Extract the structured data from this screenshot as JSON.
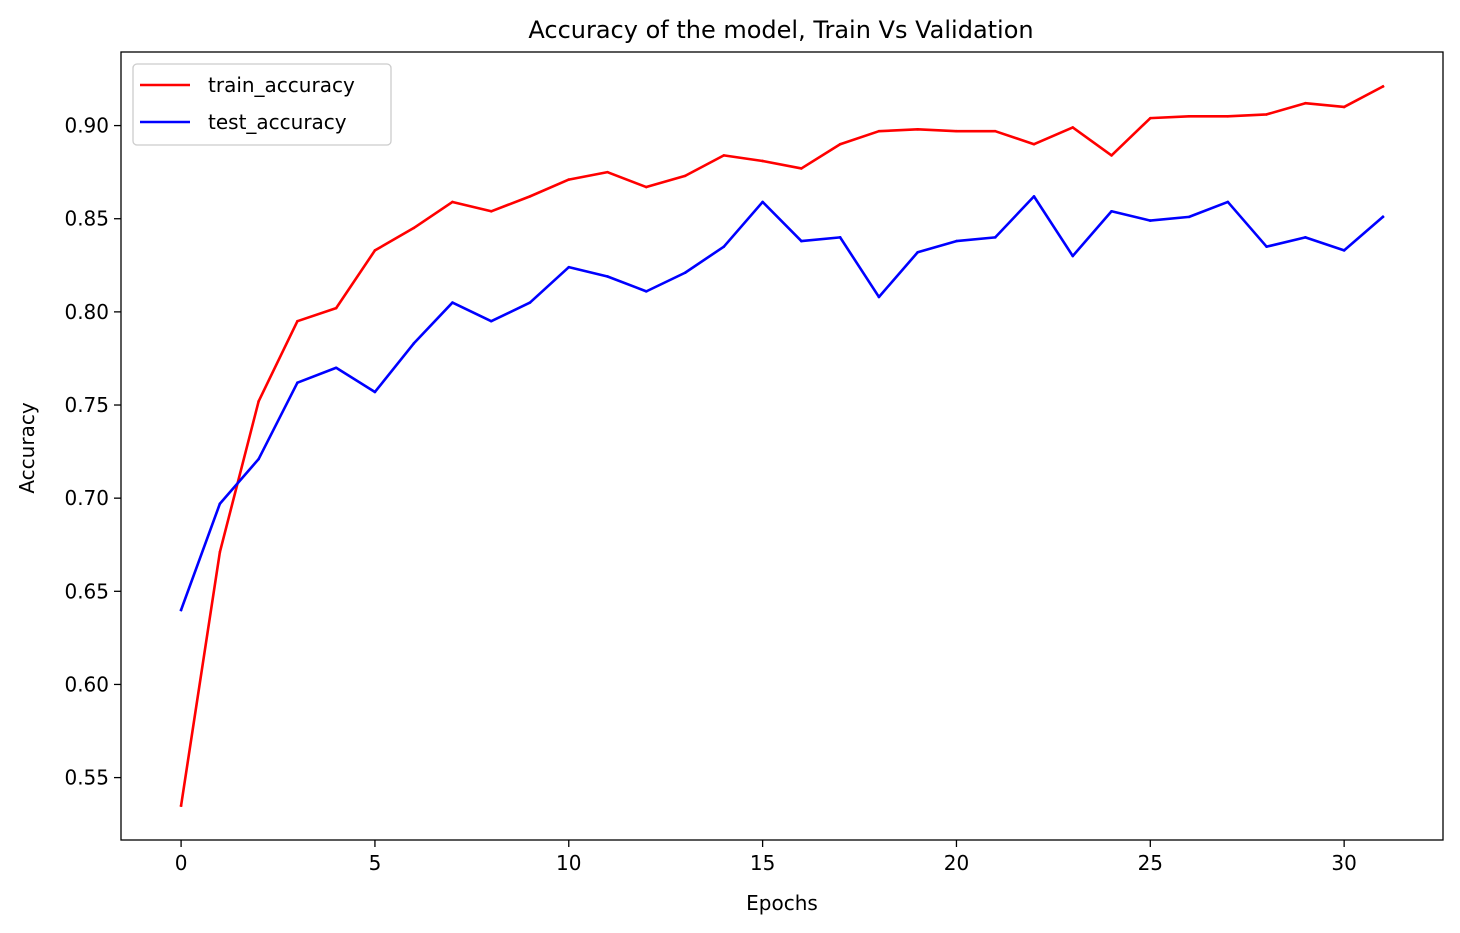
{
  "chart_data": {
    "type": "line",
    "title": "Accuracy of the model, Train Vs Validation",
    "xlabel": "Epochs",
    "ylabel": "Accuracy",
    "xlim": [
      -1.55,
      32.55
    ],
    "ylim": [
      0.5165,
      0.9395
    ],
    "xticks": [
      0,
      5,
      10,
      15,
      20,
      25,
      30
    ],
    "xtick_labels": [
      "0",
      "5",
      "10",
      "15",
      "20",
      "25",
      "30"
    ],
    "yticks": [
      0.55,
      0.6,
      0.65,
      0.7,
      0.75,
      0.8,
      0.85,
      0.9
    ],
    "ytick_labels": [
      "0.55",
      "0.60",
      "0.65",
      "0.70",
      "0.75",
      "0.80",
      "0.85",
      "0.90"
    ],
    "grid": false,
    "legend_position": "top-left",
    "x": [
      0,
      1,
      2,
      3,
      4,
      5,
      6,
      7,
      8,
      9,
      10,
      11,
      12,
      13,
      14,
      15,
      16,
      17,
      18,
      19,
      20,
      21,
      22,
      23,
      24,
      25,
      26,
      27,
      28,
      29,
      30,
      31
    ],
    "series": [
      {
        "name": "train_accuracy",
        "color": "#ff0000",
        "values": [
          0.535,
          0.671,
          0.752,
          0.795,
          0.802,
          0.833,
          0.845,
          0.859,
          0.854,
          0.862,
          0.871,
          0.875,
          0.867,
          0.873,
          0.884,
          0.881,
          0.877,
          0.89,
          0.897,
          0.898,
          0.897,
          0.897,
          0.89,
          0.899,
          0.884,
          0.904,
          0.905,
          0.905,
          0.906,
          0.912,
          0.91,
          0.921
        ]
      },
      {
        "name": "test_accuracy",
        "color": "#0000ff",
        "values": [
          0.64,
          0.697,
          0.721,
          0.762,
          0.77,
          0.757,
          0.783,
          0.805,
          0.795,
          0.805,
          0.824,
          0.819,
          0.811,
          0.821,
          0.835,
          0.859,
          0.838,
          0.84,
          0.808,
          0.832,
          0.838,
          0.84,
          0.862,
          0.83,
          0.854,
          0.849,
          0.851,
          0.859,
          0.835,
          0.84,
          0.833,
          0.851
        ]
      }
    ]
  }
}
